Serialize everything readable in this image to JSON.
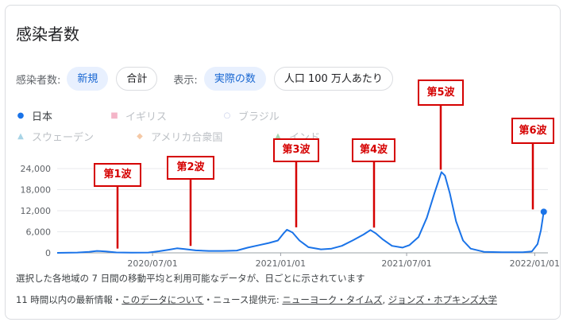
{
  "title": "感染者数",
  "filters": {
    "cases_label": "感染者数:",
    "new_label": "新規",
    "total_label": "合計",
    "display_label": "表示:",
    "actual_label": "実際の数",
    "per_million_label": "人口 100 万人あたり"
  },
  "legend": [
    {
      "label": "日本",
      "color": "#1a73e8",
      "icon": "filled-circle",
      "active": true
    },
    {
      "label": "イギリス",
      "color": "#f4b5c8",
      "icon": "filled-square",
      "active": false
    },
    {
      "label": "ブラジル",
      "color": "#c6cde8",
      "icon": "hollow-circle",
      "active": false
    },
    {
      "label": "スウェーデン",
      "color": "#a8d4e6",
      "icon": "triangle",
      "active": false
    },
    {
      "label": "アメリカ合衆国",
      "color": "#f5c9a6",
      "icon": "diamond",
      "active": false
    },
    {
      "label": "インド",
      "color": "#a8d5b0",
      "icon": "triangle",
      "active": false
    }
  ],
  "annotations": [
    "第1波",
    "第2波",
    "第3波",
    "第4波",
    "第5波",
    "第6波"
  ],
  "chart_data": {
    "type": "line",
    "series": [
      {
        "name": "日本",
        "color": "#1a73e8",
        "points": [
          [
            "2020-02-15",
            10
          ],
          [
            "2020-03-15",
            80
          ],
          [
            "2020-04-01",
            300
          ],
          [
            "2020-04-12",
            550
          ],
          [
            "2020-04-25",
            400
          ],
          [
            "2020-05-10",
            120
          ],
          [
            "2020-06-01",
            40
          ],
          [
            "2020-06-25",
            100
          ],
          [
            "2020-07-10",
            450
          ],
          [
            "2020-07-25",
            900
          ],
          [
            "2020-08-05",
            1300
          ],
          [
            "2020-08-15",
            1100
          ],
          [
            "2020-09-01",
            700
          ],
          [
            "2020-09-20",
            550
          ],
          [
            "2020-10-10",
            550
          ],
          [
            "2020-10-30",
            650
          ],
          [
            "2020-11-15",
            1500
          ],
          [
            "2020-12-01",
            2200
          ],
          [
            "2020-12-15",
            2800
          ],
          [
            "2020-12-28",
            3500
          ],
          [
            "2021-01-05",
            5500
          ],
          [
            "2021-01-10",
            6600
          ],
          [
            "2021-01-18",
            5800
          ],
          [
            "2021-01-28",
            3500
          ],
          [
            "2021-02-10",
            1600
          ],
          [
            "2021-02-28",
            1000
          ],
          [
            "2021-03-15",
            1200
          ],
          [
            "2021-03-30",
            2000
          ],
          [
            "2021-04-15",
            3600
          ],
          [
            "2021-04-30",
            5200
          ],
          [
            "2021-05-10",
            6500
          ],
          [
            "2021-05-18",
            5500
          ],
          [
            "2021-05-28",
            3800
          ],
          [
            "2021-06-10",
            2000
          ],
          [
            "2021-06-25",
            1500
          ],
          [
            "2021-07-05",
            2200
          ],
          [
            "2021-07-18",
            4500
          ],
          [
            "2021-07-30",
            10000
          ],
          [
            "2021-08-10",
            17000
          ],
          [
            "2021-08-20",
            23000
          ],
          [
            "2021-08-25",
            22000
          ],
          [
            "2021-09-01",
            17000
          ],
          [
            "2021-09-10",
            9000
          ],
          [
            "2021-09-20",
            3500
          ],
          [
            "2021-10-01",
            1200
          ],
          [
            "2021-10-20",
            300
          ],
          [
            "2021-11-15",
            150
          ],
          [
            "2021-12-15",
            150
          ],
          [
            "2021-12-28",
            400
          ],
          [
            "2022-01-05",
            2500
          ],
          [
            "2022-01-10",
            6500
          ],
          [
            "2022-01-14",
            11700
          ]
        ]
      }
    ],
    "x_ticks": [
      "2020/07/01",
      "2021/01/01",
      "2021/07/01",
      "2022/01/01"
    ],
    "y_ticks": [
      "0",
      "6,000",
      "12,000",
      "18,000",
      "24,000"
    ],
    "ylim": [
      0,
      24000
    ],
    "xlim": [
      "2020-02-15",
      "2022-01-20"
    ],
    "grid": "horizontal",
    "last_point": [
      "2022-01-14",
      11700
    ]
  },
  "footnote": "選択した各地域の 7 日間の移動平均と利用可能なデータが、日ごとに示されています",
  "sources": {
    "prefix": "11 時間以内の最新情報・",
    "about_link": "このデータについて",
    "middle": "・ニュース提供元: ",
    "nyt_link": "ニューヨーク・タイムズ",
    "sep": ", ",
    "jhu_link": "ジョンズ・ホプキンズ大学"
  }
}
